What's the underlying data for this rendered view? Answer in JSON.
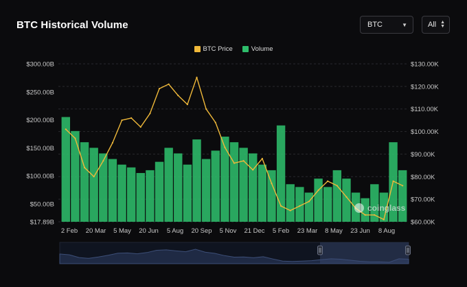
{
  "header": {
    "title": "BTC Historical Volume",
    "coin_select": {
      "value": "BTC"
    },
    "range_select": {
      "value": "All"
    }
  },
  "watermark": "coinglass",
  "colors": {
    "price": "#f0b93a",
    "volume": "#2ebd6b",
    "grid": "#2a2a2e",
    "background": "#0b0b0d",
    "navigator_fill": "#1f2a44",
    "navigator_line": "#3d4f78"
  },
  "chart_data": {
    "type": "bar",
    "title": "BTC Historical Volume",
    "legend": [
      "BTC Price",
      "Volume"
    ],
    "legend_position": "top-center",
    "grid": true,
    "y_left": {
      "ticks": [
        "$17.89B",
        "$50.00B",
        "$100.00B",
        "$150.00B",
        "$200.00B",
        "$250.00B",
        "$300.00B"
      ],
      "tick_values": [
        17.89,
        50,
        100,
        150,
        200,
        250,
        300
      ],
      "range": [
        17.89,
        300
      ],
      "unit": "B USD"
    },
    "y_right": {
      "ticks": [
        "$60.00K",
        "$70.00K",
        "$80.00K",
        "$90.00K",
        "$100.00K",
        "$110.00K",
        "$120.00K",
        "$130.00K"
      ],
      "tick_values": [
        60,
        70,
        80,
        90,
        100,
        110,
        120,
        130
      ],
      "range": [
        60,
        130
      ],
      "unit": "K USD"
    },
    "x_ticks": [
      "2 Feb",
      "20 Mar",
      "5 May",
      "20 Jun",
      "5 Aug",
      "20 Sep",
      "5 Nov",
      "21 Dec",
      "5 Feb",
      "23 Mar",
      "8 May",
      "23 Jun",
      "8 Aug"
    ],
    "series": [
      {
        "name": "BTC Price",
        "kind": "line",
        "axis": "right",
        "x": [
          "2 Feb",
          "20 Feb",
          "20 Mar",
          "5 Apr",
          "20 Apr",
          "5 May",
          "20 May",
          "5 Jun",
          "20 Jun",
          "5 Jul",
          "20 Jul",
          "5 Aug",
          "20 Aug",
          "5 Sep",
          "20 Sep",
          "5 Oct",
          "20 Oct",
          "5 Nov",
          "20 Nov",
          "5 Dec",
          "21 Dec",
          "5 Jan",
          "20 Jan",
          "5 Feb",
          "20 Feb",
          "5 Mar",
          "23 Mar",
          "8 Apr",
          "23 Apr",
          "8 May",
          "23 May",
          "8 Jun",
          "23 Jun",
          "8 Jul",
          "23 Jul",
          "8 Aug",
          "23 Aug"
        ],
        "values": [
          101,
          97,
          84,
          80,
          87,
          95,
          105,
          106,
          102,
          108,
          119,
          121,
          116,
          112,
          124,
          110,
          104,
          93,
          86,
          87,
          83,
          88,
          77,
          67,
          65,
          67,
          69,
          74,
          78,
          76,
          71,
          66,
          63,
          63,
          61,
          78,
          76
        ]
      },
      {
        "name": "Volume",
        "kind": "bar",
        "axis": "left",
        "x": [
          "2 Feb",
          "20 Feb",
          "20 Mar",
          "5 Apr",
          "20 Apr",
          "5 May",
          "20 May",
          "5 Jun",
          "20 Jun",
          "5 Jul",
          "20 Jul",
          "5 Aug",
          "20 Aug",
          "5 Sep",
          "20 Sep",
          "5 Oct",
          "20 Oct",
          "5 Nov",
          "20 Nov",
          "5 Dec",
          "21 Dec",
          "5 Jan",
          "20 Jan",
          "5 Feb",
          "20 Feb",
          "5 Mar",
          "23 Mar",
          "8 Apr",
          "23 Apr",
          "8 May",
          "23 May",
          "8 Jun",
          "23 Jun",
          "8 Jul",
          "23 Jul",
          "8 Aug",
          "23 Aug"
        ],
        "values": [
          205,
          180,
          160,
          150,
          140,
          130,
          120,
          115,
          105,
          110,
          125,
          150,
          140,
          120,
          165,
          130,
          145,
          170,
          160,
          150,
          140,
          120,
          110,
          190,
          85,
          80,
          70,
          95,
          80,
          110,
          95,
          70,
          60,
          85,
          70,
          160,
          110
        ]
      }
    ]
  }
}
